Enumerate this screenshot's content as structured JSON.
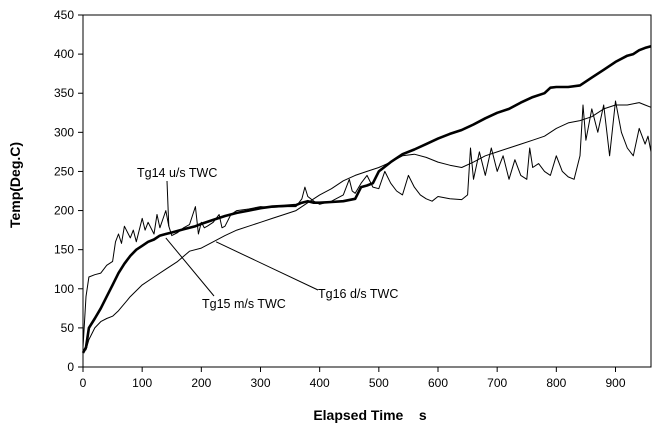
{
  "chart_data": {
    "type": "line",
    "title": "",
    "xlabel": "Elapsed Time    s",
    "ylabel": "Temp(Deg.C)",
    "xlim": [
      0,
      960
    ],
    "ylim": [
      0,
      450
    ],
    "xticks": [
      0,
      100,
      200,
      300,
      400,
      500,
      600,
      700,
      800,
      900
    ],
    "yticks": [
      0,
      50,
      100,
      150,
      200,
      250,
      300,
      350,
      400,
      450
    ],
    "grid": false,
    "legend": "none (series labelled by callout annotations)",
    "series": [
      {
        "name": "Tg14 u/s TWC",
        "color": "#000000",
        "line_weight": "thin",
        "x": [
          0,
          5,
          10,
          20,
          30,
          40,
          50,
          55,
          60,
          65,
          70,
          80,
          85,
          90,
          100,
          105,
          110,
          120,
          125,
          130,
          140,
          145,
          150,
          160,
          170,
          180,
          190,
          195,
          200,
          205,
          210,
          220,
          225,
          230,
          235,
          240,
          250,
          260,
          280,
          300,
          320,
          340,
          360,
          370,
          375,
          380,
          390,
          400,
          410,
          420,
          440,
          450,
          455,
          460,
          470,
          480,
          490,
          500,
          510,
          520,
          530,
          540,
          550,
          560,
          570,
          580,
          590,
          600,
          620,
          640,
          650,
          655,
          660,
          670,
          680,
          690,
          700,
          705,
          710,
          720,
          730,
          740,
          750,
          755,
          760,
          770,
          780,
          790,
          800,
          810,
          820,
          830,
          840,
          845,
          850,
          860,
          870,
          880,
          890,
          900,
          910,
          920,
          930,
          940,
          950,
          955,
          960
        ],
        "y": [
          25,
          90,
          115,
          118,
          120,
          130,
          135,
          160,
          170,
          158,
          180,
          165,
          175,
          160,
          190,
          175,
          185,
          170,
          195,
          178,
          200,
          180,
          168,
          172,
          178,
          182,
          205,
          170,
          185,
          178,
          180,
          185,
          190,
          195,
          178,
          180,
          195,
          200,
          202,
          205,
          204,
          205,
          205,
          215,
          230,
          218,
          212,
          208,
          210,
          212,
          220,
          240,
          225,
          222,
          235,
          245,
          230,
          228,
          250,
          235,
          225,
          220,
          245,
          230,
          220,
          215,
          212,
          218,
          215,
          214,
          220,
          280,
          240,
          275,
          245,
          280,
          250,
          260,
          270,
          240,
          265,
          245,
          240,
          280,
          255,
          260,
          250,
          245,
          270,
          250,
          243,
          240,
          270,
          335,
          290,
          330,
          300,
          335,
          270,
          340,
          300,
          280,
          270,
          305,
          285,
          295,
          275
        ]
      },
      {
        "name": "Tg15 m/s TWC",
        "color": "#000000",
        "line_weight": "thick",
        "x": [
          0,
          5,
          10,
          20,
          30,
          40,
          50,
          60,
          70,
          80,
          90,
          100,
          110,
          120,
          130,
          140,
          150,
          160,
          170,
          180,
          190,
          200,
          220,
          240,
          260,
          280,
          300,
          320,
          340,
          360,
          370,
          380,
          390,
          400,
          420,
          440,
          460,
          470,
          480,
          490,
          500,
          520,
          540,
          560,
          580,
          600,
          620,
          640,
          660,
          680,
          700,
          720,
          740,
          760,
          780,
          790,
          800,
          820,
          840,
          860,
          880,
          900,
          920,
          930,
          940,
          950,
          960
        ],
        "y": [
          18,
          25,
          50,
          62,
          75,
          90,
          105,
          120,
          132,
          142,
          150,
          155,
          160,
          163,
          168,
          170,
          172,
          174,
          176,
          178,
          180,
          183,
          188,
          193,
          197,
          200,
          203,
          205,
          206,
          207,
          210,
          212,
          210,
          210,
          211,
          212,
          215,
          230,
          232,
          235,
          250,
          262,
          272,
          278,
          285,
          292,
          298,
          303,
          310,
          318,
          325,
          330,
          338,
          345,
          350,
          357,
          358,
          358,
          360,
          370,
          380,
          390,
          398,
          400,
          405,
          408,
          410
        ]
      },
      {
        "name": "Tg16 d/s TWC",
        "color": "#000000",
        "line_weight": "thin",
        "x": [
          0,
          5,
          10,
          20,
          30,
          40,
          50,
          60,
          80,
          100,
          120,
          140,
          160,
          180,
          200,
          220,
          240,
          260,
          280,
          300,
          320,
          340,
          360,
          380,
          400,
          420,
          440,
          460,
          480,
          500,
          520,
          540,
          560,
          580,
          600,
          620,
          640,
          660,
          680,
          700,
          720,
          740,
          760,
          780,
          800,
          820,
          840,
          860,
          880,
          900,
          920,
          940,
          950,
          960
        ],
        "y": [
          20,
          22,
          35,
          50,
          58,
          62,
          65,
          72,
          90,
          105,
          115,
          125,
          135,
          148,
          152,
          160,
          168,
          175,
          180,
          185,
          190,
          195,
          200,
          210,
          220,
          228,
          238,
          245,
          250,
          255,
          262,
          270,
          272,
          268,
          262,
          258,
          255,
          262,
          270,
          275,
          280,
          285,
          290,
          295,
          305,
          312,
          315,
          320,
          330,
          335,
          335,
          338,
          335,
          332
        ]
      }
    ],
    "annotations": [
      {
        "text": "Tg14 u/s TWC",
        "series": "Tg14 u/s TWC",
        "anchor": [
          145,
          180
        ]
      },
      {
        "text": "Tg15 m/s TWC",
        "series": "Tg15 m/s TWC",
        "anchor": [
          140,
          165
        ]
      },
      {
        "text": "Tg16 d/s TWC",
        "series": "Tg16 d/s TWC",
        "anchor": [
          225,
          160
        ]
      }
    ]
  }
}
